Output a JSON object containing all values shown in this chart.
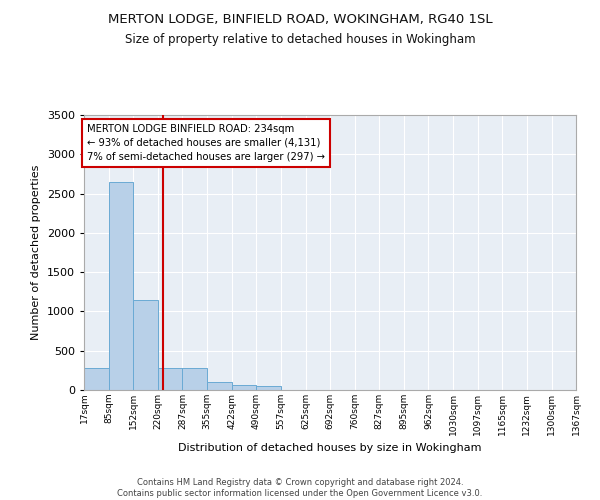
{
  "title": "MERTON LODGE, BINFIELD ROAD, WOKINGHAM, RG40 1SL",
  "subtitle": "Size of property relative to detached houses in Wokingham",
  "xlabel": "Distribution of detached houses by size in Wokingham",
  "ylabel": "Number of detached properties",
  "bar_color": "#b8d0e8",
  "bar_edge_color": "#6aaad4",
  "background_color": "#e8eef5",
  "grid_color": "#ffffff",
  "red_line_x": 234,
  "annotation_text": "MERTON LODGE BINFIELD ROAD: 234sqm\n← 93% of detached houses are smaller (4,131)\n7% of semi-detached houses are larger (297) →",
  "annotation_box_color": "#ffffff",
  "annotation_box_edge_color": "#cc0000",
  "footer_text": "Contains HM Land Registry data © Crown copyright and database right 2024.\nContains public sector information licensed under the Open Government Licence v3.0.",
  "bin_edges": [
    17,
    85,
    152,
    220,
    287,
    355,
    422,
    490,
    557,
    625,
    692,
    760,
    827,
    895,
    962,
    1030,
    1097,
    1165,
    1232,
    1300,
    1367
  ],
  "bin_heights": [
    275,
    2650,
    1150,
    285,
    285,
    100,
    65,
    45,
    0,
    0,
    0,
    0,
    0,
    0,
    0,
    0,
    0,
    0,
    0,
    0
  ],
  "ylim": [
    0,
    3500
  ],
  "yticks": [
    0,
    500,
    1000,
    1500,
    2000,
    2500,
    3000,
    3500
  ]
}
